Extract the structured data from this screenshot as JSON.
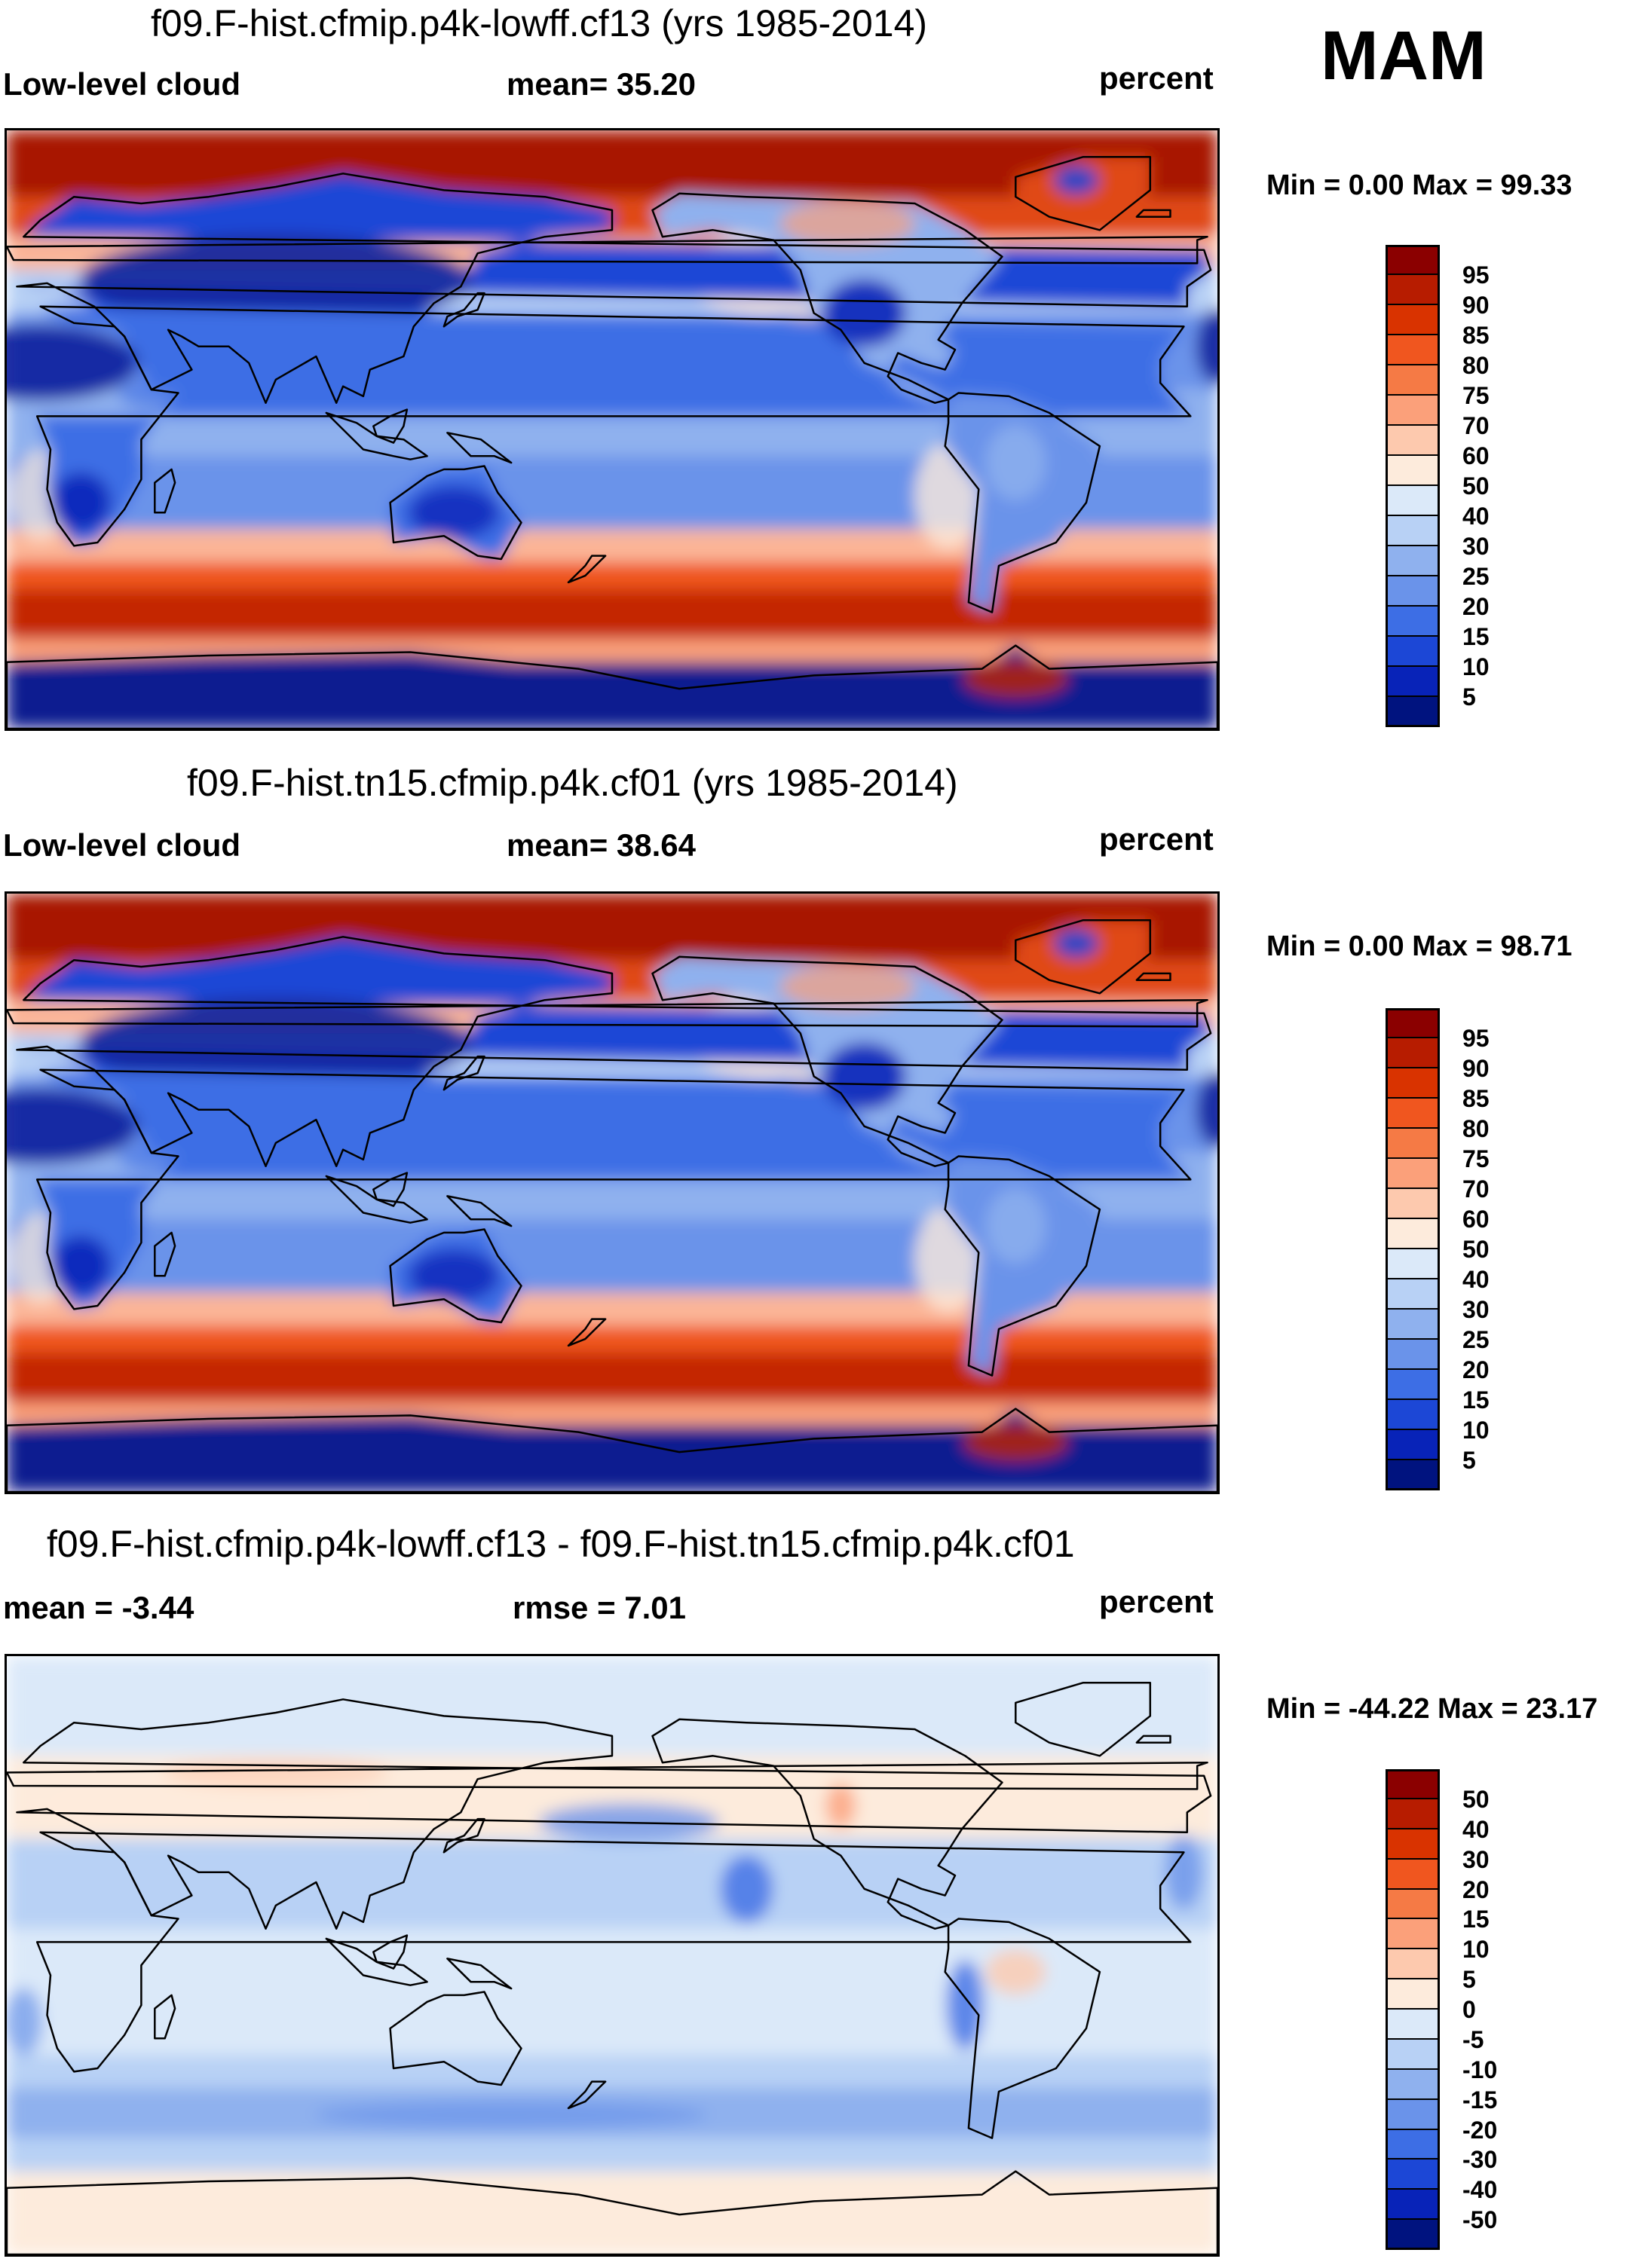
{
  "season": "MAM",
  "panels": [
    {
      "title": "f09.F-hist.cfmip.p4k-lowff.cf13 (yrs 1985-2014)",
      "left_label": "Low-level cloud",
      "center_label": "mean=  35.20",
      "right_label": "percent",
      "minmax": "Min =   0.00 Max =  99.33",
      "kind": "abs"
    },
    {
      "title": "f09.F-hist.tn15.cfmip.p4k.cf01 (yrs 1985-2014)",
      "left_label": "Low-level cloud",
      "center_label": "mean=  38.64",
      "right_label": "percent",
      "minmax": "Min =   0.00 Max =  98.71",
      "kind": "abs"
    },
    {
      "title": "f09.F-hist.cfmip.p4k-lowff.cf13 - f09.F-hist.tn15.cfmip.p4k.cf01",
      "left_label": "mean =  -3.44",
      "center_label": "rmse =    7.01",
      "right_label": "percent",
      "minmax": "Min = -44.22 Max =  23.17",
      "kind": "diff"
    }
  ],
  "colorbars": {
    "abs": {
      "ticks": [
        "95",
        "90",
        "85",
        "80",
        "75",
        "70",
        "60",
        "50",
        "40",
        "30",
        "25",
        "20",
        "15",
        "10",
        "5"
      ],
      "colors": [
        "#8b0000",
        "#b71c00",
        "#d93300",
        "#f0561f",
        "#f57a45",
        "#fba07a",
        "#fdc9ae",
        "#fdebdc",
        "#dbe9f9",
        "#b8d1f5",
        "#8fb1ee",
        "#6a93ea",
        "#3d6ee5",
        "#1c47d6",
        "#0823b8",
        "#00137f"
      ]
    },
    "diff": {
      "ticks": [
        "50",
        "40",
        "30",
        "20",
        "15",
        "10",
        "5",
        "0",
        "-5",
        "-10",
        "-15",
        "-20",
        "-30",
        "-40",
        "-50"
      ],
      "colors": [
        "#8b0000",
        "#b71c00",
        "#d93300",
        "#f0561f",
        "#f57a45",
        "#fba07a",
        "#fdc9ae",
        "#fdebdc",
        "#dbe9f9",
        "#b8d1f5",
        "#8fb1ee",
        "#6a93ea",
        "#3d6ee5",
        "#1c47d6",
        "#0823b8",
        "#00137f"
      ]
    }
  }
}
